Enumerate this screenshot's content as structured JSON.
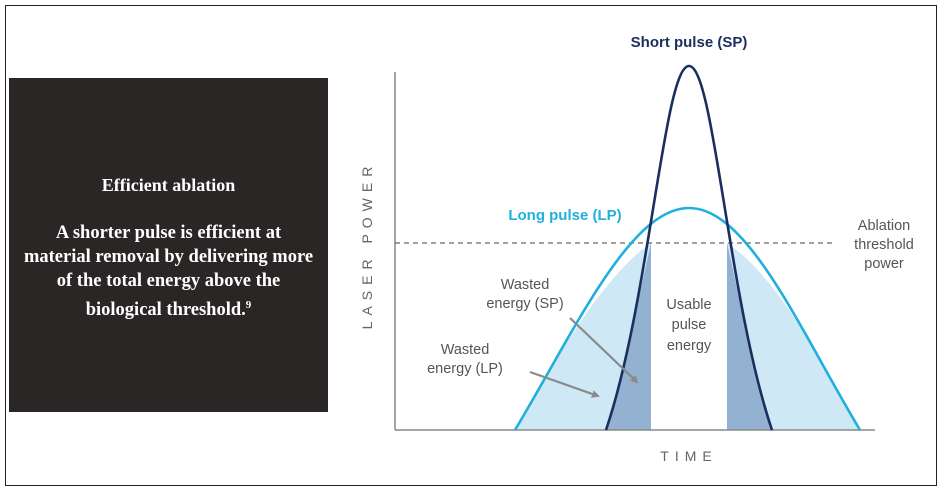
{
  "panel": {
    "title": "Efficient ablation",
    "body": "A shorter pulse is efficient at material removal by delivering more of the total energy above the biological threshold.",
    "footnote": "9"
  },
  "diagram": {
    "y_axis_label": "LASER POWER",
    "x_axis_label": "TIME",
    "short_pulse_label": "Short pulse (SP)",
    "long_pulse_label": "Long pulse (LP)",
    "threshold_label": [
      "Ablation",
      "threshold",
      "power"
    ],
    "wasted_sp_label": [
      "Wasted",
      "energy (SP)"
    ],
    "wasted_lp_label": [
      "Wasted",
      "energy (LP)"
    ],
    "usable_label": [
      "Usable",
      "pulse",
      "energy"
    ],
    "colors": {
      "short_pulse": "#1b2f5e",
      "long_pulse": "#21b0dd",
      "wasted_lp_fill": "#cfe8f6",
      "wasted_sp_fill": "#93b2d2",
      "threshold_line": "#666666",
      "arrow": "#8a8a8a"
    }
  }
}
